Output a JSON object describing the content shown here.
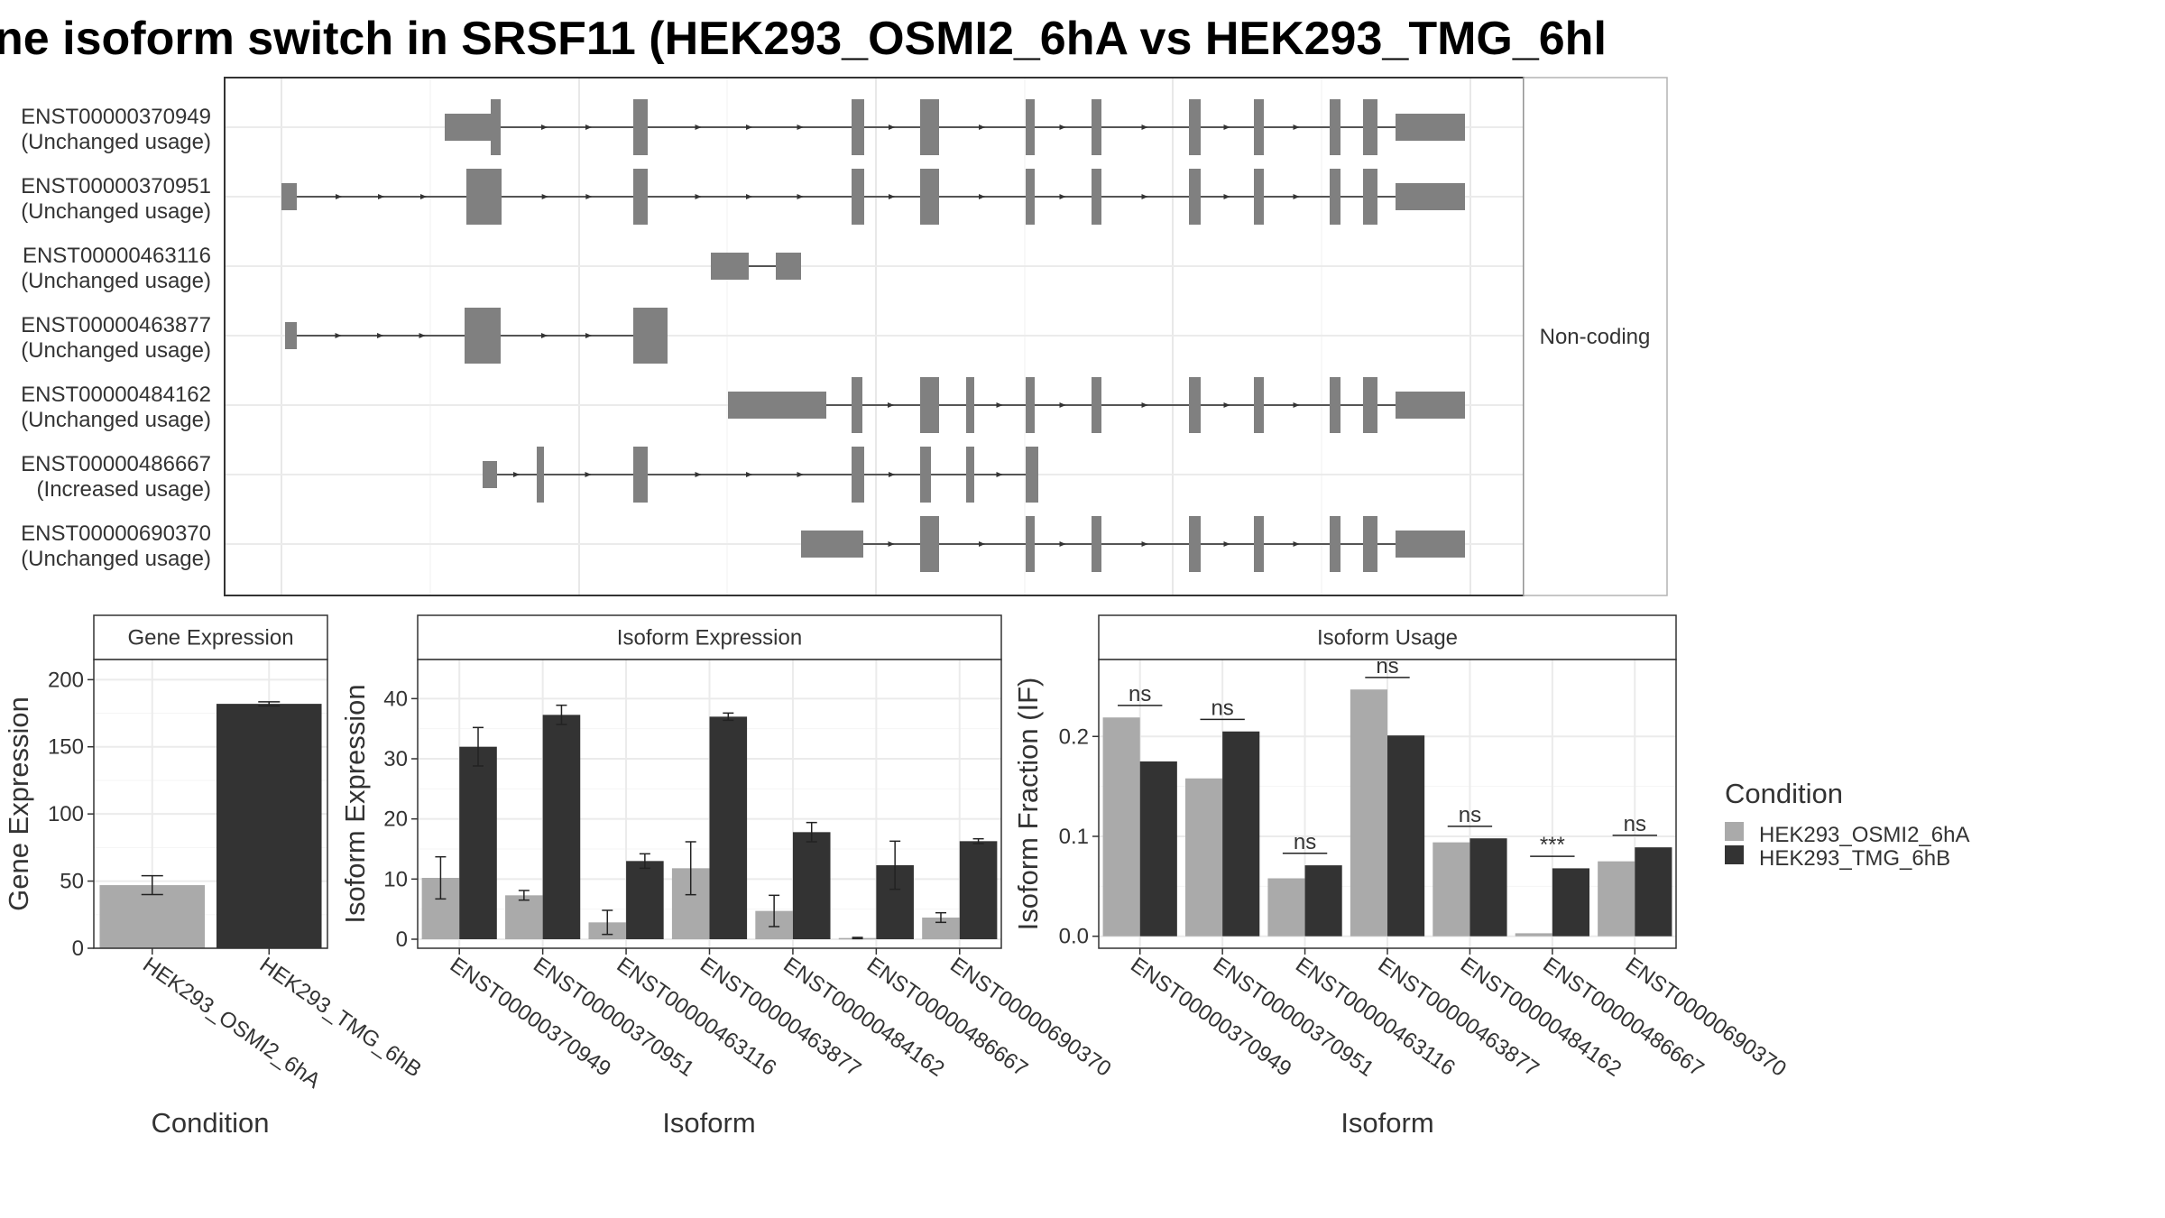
{
  "title": "ne isoform switch in SRSF11 (HEK293_OSMI2_6hA vs HEK293_TMG_6hl",
  "structure": {
    "facet_label": "Non-coding",
    "transcripts": [
      {
        "id": "ENST00000370949",
        "usage": "(Unchanged usage)"
      },
      {
        "id": "ENST00000370951",
        "usage": "(Unchanged usage)"
      },
      {
        "id": "ENST00000463116",
        "usage": "(Unchanged usage)"
      },
      {
        "id": "ENST00000463877",
        "usage": "(Unchanged usage)"
      },
      {
        "id": "ENST00000484162",
        "usage": "(Unchanged usage)"
      },
      {
        "id": "ENST00000486667",
        "usage": "(Increased usage)"
      },
      {
        "id": "ENST00000690370",
        "usage": "(Unchanged usage)"
      }
    ]
  },
  "colors": {
    "condition_a": "#aaaaaa",
    "condition_b": "#333333",
    "exon": "#808080"
  },
  "legend": {
    "title": "Condition",
    "items": [
      "HEK293_OSMI2_6hA",
      "HEK293_TMG_6hB"
    ]
  },
  "chart_data": [
    {
      "type": "bar",
      "title": "Gene Expression",
      "xlabel": "Condition",
      "ylabel": "Gene Expression",
      "categories": [
        "HEK293_OSMI2_6hA",
        "HEK293_TMG_6hB"
      ],
      "values": [
        47,
        182
      ],
      "errors": [
        7,
        1.5
      ],
      "ylim": [
        0,
        215
      ],
      "yticks": [
        0,
        50,
        100,
        150,
        200
      ]
    },
    {
      "type": "bar",
      "title": "Isoform Expression",
      "xlabel": "Isoform",
      "ylabel": "Isoform Expression",
      "categories": [
        "ENST00000370949",
        "ENST00000370951",
        "ENST00000463116",
        "ENST00000463877",
        "ENST00000484162",
        "ENST00000486667",
        "ENST00000690370"
      ],
      "series": [
        {
          "name": "HEK293_OSMI2_6hA",
          "values": [
            10.2,
            7.3,
            2.8,
            11.8,
            4.7,
            0.2,
            3.6
          ],
          "errors": [
            3.5,
            0.8,
            2.0,
            4.4,
            2.6,
            0.1,
            0.8
          ]
        },
        {
          "name": "HEK293_TMG_6hB",
          "values": [
            32.0,
            37.3,
            13.0,
            37.0,
            17.8,
            12.3,
            16.3
          ],
          "errors": [
            3.2,
            1.6,
            1.2,
            0.6,
            1.6,
            4.0,
            0.4
          ]
        }
      ],
      "ylim": [
        -1.5,
        46.5
      ],
      "yticks": [
        0,
        10,
        20,
        30,
        40
      ]
    },
    {
      "type": "bar",
      "title": "Isoform Usage",
      "xlabel": "Isoform",
      "ylabel": "Isoform Fraction (IF)",
      "categories": [
        "ENST00000370949",
        "ENST00000370951",
        "ENST00000463116",
        "ENST00000463877",
        "ENST00000484162",
        "ENST00000486667",
        "ENST00000690370"
      ],
      "series": [
        {
          "name": "HEK293_OSMI2_6hA",
          "values": [
            0.219,
            0.158,
            0.058,
            0.247,
            0.094,
            0.003,
            0.075
          ]
        },
        {
          "name": "HEK293_TMG_6hB",
          "values": [
            0.175,
            0.205,
            0.071,
            0.201,
            0.098,
            0.068,
            0.089
          ]
        }
      ],
      "significance": [
        "ns",
        "ns",
        "ns",
        "ns",
        "ns",
        "***",
        "ns"
      ],
      "ylim": [
        -0.012,
        0.277
      ],
      "yticks": [
        0.0,
        0.1,
        0.2
      ],
      "ytick_labels": [
        "0.0",
        "0.1",
        "0.2"
      ]
    }
  ]
}
